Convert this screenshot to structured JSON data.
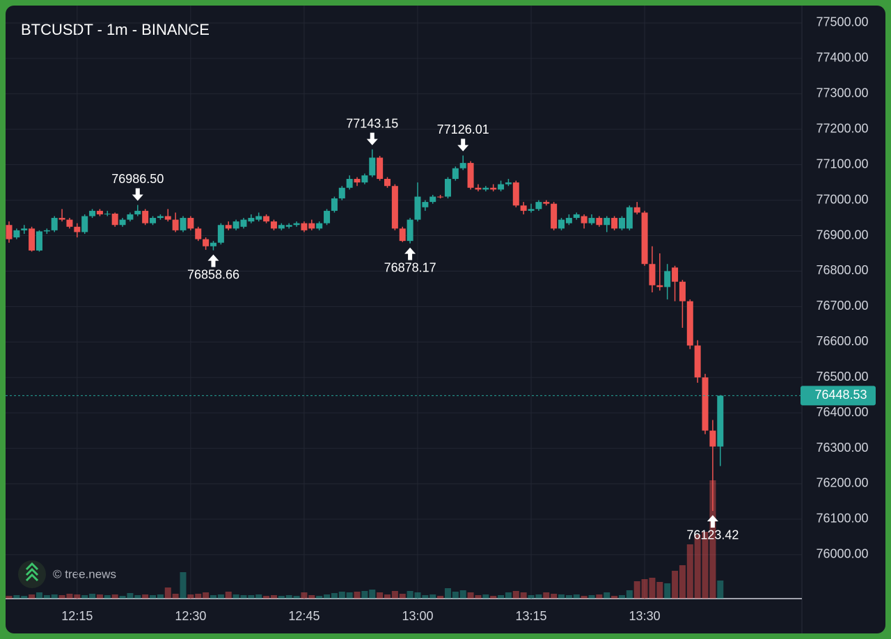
{
  "chart_data": {
    "type": "candlestick",
    "title": "BTCUSDT - 1m - BINANCE",
    "watermark": "© tree.news",
    "up_color": "#26a69a",
    "down_color": "#ef5350",
    "grid": true,
    "categories": [
      null,
      null,
      null,
      null,
      null,
      null,
      null,
      null,
      null,
      "12:15",
      null,
      null,
      null,
      null,
      null,
      null,
      null,
      null,
      null,
      null,
      null,
      null,
      null,
      null,
      "12:30",
      null,
      null,
      null,
      null,
      null,
      null,
      null,
      null,
      null,
      null,
      null,
      null,
      null,
      null,
      "12:45",
      null,
      null,
      null,
      null,
      null,
      null,
      null,
      null,
      null,
      null,
      null,
      null,
      null,
      null,
      "13:00",
      null,
      null,
      null,
      null,
      null,
      null,
      null,
      null,
      null,
      null,
      null,
      null,
      null,
      null,
      "13:15",
      null,
      null,
      null,
      null,
      null,
      null,
      null,
      null,
      null,
      null,
      null,
      null,
      null,
      null,
      "13:30",
      null,
      null,
      null,
      null,
      null,
      null,
      null,
      null,
      null,
      null
    ],
    "ohlc": [
      [
        76930,
        76940,
        76880,
        76890
      ],
      [
        76895,
        76920,
        76890,
        76915
      ],
      [
        76915,
        76930,
        76905,
        76920
      ],
      [
        76920,
        76925,
        76855,
        76858
      ],
      [
        76858,
        76915,
        76855,
        76912
      ],
      [
        76912,
        76920,
        76905,
        76915
      ],
      [
        76915,
        76955,
        76910,
        76950
      ],
      [
        76950,
        76975,
        76940,
        76945
      ],
      [
        76945,
        76950,
        76920,
        76925
      ],
      [
        76925,
        76935,
        76895,
        76910
      ],
      [
        76910,
        76960,
        76905,
        76955
      ],
      [
        76955,
        76975,
        76950,
        76970
      ],
      [
        76970,
        76975,
        76955,
        76960
      ],
      [
        76960,
        76970,
        76955,
        76962
      ],
      [
        76962,
        76965,
        76925,
        76930
      ],
      [
        76930,
        76950,
        76925,
        76945
      ],
      [
        76945,
        76965,
        76940,
        76960
      ],
      [
        76960,
        76986.5,
        76955,
        76970
      ],
      [
        76970,
        76975,
        76930,
        76935
      ],
      [
        76935,
        76955,
        76930,
        76950
      ],
      [
        76950,
        76960,
        76945,
        76955
      ],
      [
        76955,
        76975,
        76940,
        76945
      ],
      [
        76945,
        76965,
        76910,
        76915
      ],
      [
        76915,
        76955,
        76910,
        76950
      ],
      [
        76950,
        76955,
        76915,
        76920
      ],
      [
        76920,
        76925,
        76885,
        76890
      ],
      [
        76890,
        76895,
        76860,
        76870
      ],
      [
        76870,
        76885,
        76858.66,
        76880
      ],
      [
        76880,
        76935,
        76875,
        76930
      ],
      [
        76930,
        76940,
        76915,
        76920
      ],
      [
        76920,
        76945,
        76915,
        76940
      ],
      [
        76925,
        76950,
        76920,
        76945
      ],
      [
        76940,
        76960,
        76935,
        76950
      ],
      [
        76945,
        76965,
        76940,
        76955
      ],
      [
        76955,
        76960,
        76935,
        76940
      ],
      [
        76940,
        76945,
        76915,
        76920
      ],
      [
        76920,
        76935,
        76915,
        76930
      ],
      [
        76925,
        76935,
        76920,
        76930
      ],
      [
        76930,
        76940,
        76925,
        76935
      ],
      [
        76935,
        76940,
        76910,
        76915
      ],
      [
        76935,
        76945,
        76915,
        76920
      ],
      [
        76920,
        76940,
        76915,
        76935
      ],
      [
        76935,
        76975,
        76930,
        76970
      ],
      [
        76970,
        77010,
        76965,
        77005
      ],
      [
        77005,
        77040,
        77000,
        77035
      ],
      [
        77035,
        77070,
        77030,
        77060
      ],
      [
        77060,
        77065,
        77040,
        77050
      ],
      [
        77050,
        77075,
        77045,
        77070
      ],
      [
        77070,
        77143.15,
        77065,
        77120
      ],
      [
        77120,
        77125,
        77055,
        77060
      ],
      [
        77060,
        77065,
        77035,
        77040
      ],
      [
        77040,
        77045,
        76915,
        76920
      ],
      [
        76920,
        76925,
        76882,
        76885
      ],
      [
        76885,
        76950,
        76878.17,
        76945
      ],
      [
        76945,
        77050,
        76940,
        77010
      ],
      [
        76980,
        77000,
        76970,
        76995
      ],
      [
        76995,
        77015,
        76990,
        77010
      ],
      [
        77010,
        77015,
        77005,
        77008
      ],
      [
        77010,
        77065,
        77005,
        77060
      ],
      [
        77060,
        77095,
        77055,
        77090
      ],
      [
        77090,
        77126.01,
        77085,
        77105
      ],
      [
        77105,
        77110,
        77030,
        77035
      ],
      [
        77035,
        77045,
        77025,
        77030
      ],
      [
        77030,
        77040,
        77025,
        77035
      ],
      [
        77035,
        77045,
        77025,
        77030
      ],
      [
        77030,
        77055,
        77025,
        77045
      ],
      [
        77045,
        77060,
        77040,
        77050
      ],
      [
        77050,
        77055,
        76980,
        76985
      ],
      [
        76985,
        76995,
        76960,
        76970
      ],
      [
        76970,
        76990,
        76965,
        76975
      ],
      [
        76975,
        77000,
        76970,
        76995
      ],
      [
        76995,
        77000,
        76985,
        76990
      ],
      [
        76990,
        76995,
        76915,
        76920
      ],
      [
        76920,
        76950,
        76915,
        76945
      ],
      [
        76935,
        76960,
        76930,
        76950
      ],
      [
        76950,
        76965,
        76945,
        76960
      ],
      [
        76955,
        76960,
        76920,
        76935
      ],
      [
        76935,
        76960,
        76930,
        76950
      ],
      [
        76950,
        76955,
        76925,
        76930
      ],
      [
        76930,
        76955,
        76910,
        76950
      ],
      [
        76950,
        76955,
        76915,
        76920
      ],
      [
        76920,
        76955,
        76915,
        76950
      ],
      [
        76920,
        76985,
        76915,
        76980
      ],
      [
        76980,
        76995,
        76960,
        76965
      ],
      [
        76965,
        76970,
        76815,
        76820
      ],
      [
        76820,
        76870,
        76740,
        76760
      ],
      [
        76760,
        76850,
        76745,
        76755
      ],
      [
        76755,
        76820,
        76720,
        76800
      ],
      [
        76810,
        76815,
        76715,
        76770
      ],
      [
        76770,
        76775,
        76640,
        76715
      ],
      [
        76715,
        76720,
        76580,
        76590
      ],
      [
        76590,
        76605,
        76485,
        76500
      ],
      [
        76500,
        76510,
        76340,
        76350
      ],
      [
        76350,
        76380,
        76123.42,
        76305
      ],
      [
        76305,
        76450,
        76250,
        76448.53
      ]
    ],
    "volume": [
      4,
      5,
      4,
      6,
      9,
      5,
      6,
      5,
      7,
      6,
      5,
      7,
      6,
      5,
      6,
      4,
      8,
      5,
      6,
      5,
      6,
      16,
      7,
      38,
      6,
      7,
      9,
      5,
      6,
      10,
      6,
      5,
      5,
      6,
      4,
      5,
      4,
      5,
      4,
      9,
      5,
      4,
      6,
      8,
      10,
      9,
      10,
      11,
      13,
      9,
      6,
      11,
      7,
      11,
      9,
      5,
      6,
      4,
      15,
      10,
      12,
      9,
      5,
      6,
      4,
      5,
      9,
      11,
      9,
      5,
      6,
      9,
      7,
      6,
      5,
      6,
      4,
      5,
      6,
      9,
      4,
      5,
      12,
      25,
      28,
      30,
      24,
      22,
      40,
      48,
      78,
      92,
      96,
      170,
      26
    ],
    "ylim": [
      75876,
      77549
    ],
    "yticks": [
      {
        "value": 76000,
        "label": "76000.00"
      },
      {
        "value": 76100,
        "label": "76100.00"
      },
      {
        "value": 76200,
        "label": "76200.00"
      },
      {
        "value": 76300,
        "label": "76300.00"
      },
      {
        "value": 76400,
        "label": "76400.00"
      },
      {
        "value": 76500,
        "label": "76500.00"
      },
      {
        "value": 76600,
        "label": "76600.00"
      },
      {
        "value": 76700,
        "label": "76700.00"
      },
      {
        "value": 76800,
        "label": "76800.00"
      },
      {
        "value": 76900,
        "label": "76900.00"
      },
      {
        "value": 77000,
        "label": "77000.00"
      },
      {
        "value": 77100,
        "label": "77100.00"
      },
      {
        "value": 77200,
        "label": "77200.00"
      },
      {
        "value": 77300,
        "label": "77300.00"
      },
      {
        "value": 77400,
        "label": "77400.00"
      },
      {
        "value": 77500,
        "label": "77500.00"
      }
    ],
    "last_price": 76448.53,
    "annotations": [
      {
        "value": 76986.5,
        "label": "76986.50"
      },
      76858.66,
      77143.15,
      76878.17,
      77126.01,
      76123.42
    ]
  }
}
